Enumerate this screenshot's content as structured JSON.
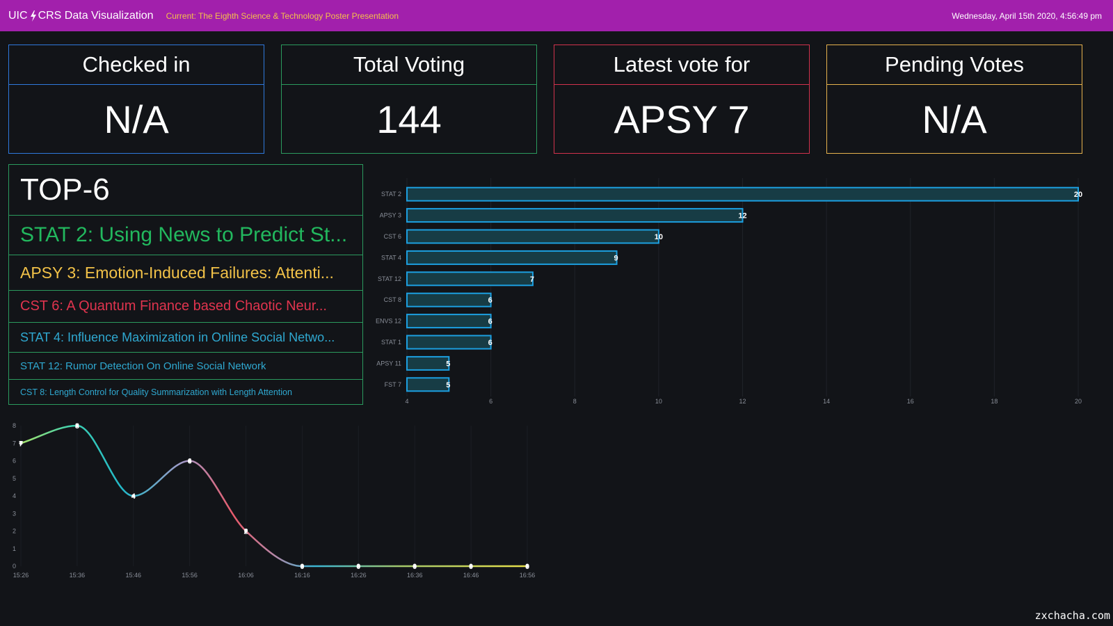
{
  "header": {
    "brand_left": "UIC",
    "brand_right": "CRS Data Visualization",
    "current": "Current: The Eighth Science & Technology Poster Presentation",
    "datetime": "Wednesday, April 15th 2020, 4:56:49 pm",
    "bar_color": "#a220ac",
    "bolt_icon": "lightning-bolt-icon"
  },
  "cards": [
    {
      "title": "Checked in",
      "value": "N/A",
      "color": "#2f79dd"
    },
    {
      "title": "Total Voting",
      "value": "144",
      "color": "#2b9b5e"
    },
    {
      "title": "Latest vote for",
      "value": "APSY 7",
      "color": "#d2324d"
    },
    {
      "title": "Pending Votes",
      "value": "N/A",
      "color": "#e7b34e"
    }
  ],
  "top6": {
    "title": "TOP-6",
    "items": [
      "STAT 2: Using News to Predict St...",
      "APSY 3: Emotion-Induced Failures: Attenti...",
      "CST 6: A Quantum Finance based Chaotic Neur...",
      "STAT 4: Influence Maximization in Online Social Netwo...",
      "STAT 12: Rumor Detection On Online Social Network",
      "CST 8: Length Control for Quality Summarization with Length Attention"
    ]
  },
  "chart_data": [
    {
      "type": "bar",
      "orientation": "horizontal",
      "categories": [
        "STAT 2",
        "APSY 3",
        "CST 6",
        "STAT 4",
        "STAT 12",
        "CST 8",
        "ENVS 12",
        "STAT 1",
        "APSY 11",
        "FST 7"
      ],
      "values": [
        20,
        12,
        10,
        9,
        7,
        6,
        6,
        6,
        5,
        5
      ],
      "xlim": [
        4,
        20
      ],
      "xticks": [
        4,
        6,
        8,
        10,
        12,
        14,
        16,
        18,
        20
      ],
      "bar_color": "#1c9fe0",
      "bar_fill": "#173c45"
    },
    {
      "type": "line",
      "x": [
        "15:26",
        "15:36",
        "15:46",
        "15:56",
        "16:06",
        "16:16",
        "16:26",
        "16:36",
        "16:46",
        "16:56"
      ],
      "values": [
        7,
        8,
        4,
        6,
        2,
        0,
        0,
        0,
        0,
        0
      ],
      "ylim": [
        0,
        8
      ],
      "yticks": [
        0,
        1,
        2,
        3,
        4,
        5,
        6,
        7,
        8
      ],
      "smooth": true
    }
  ],
  "watermark": "zxchacha.com"
}
